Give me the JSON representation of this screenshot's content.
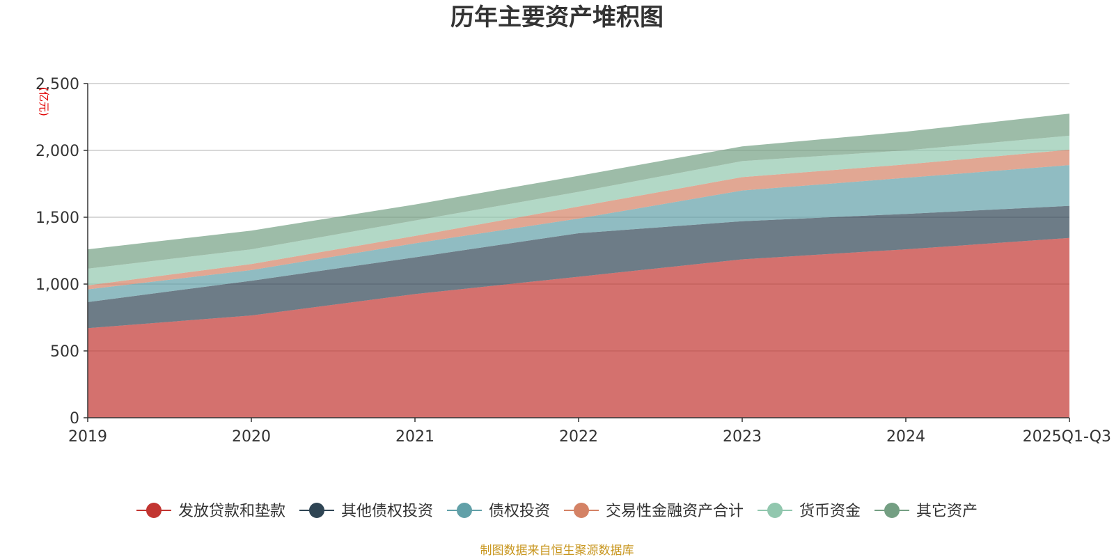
{
  "chart_data": {
    "type": "area",
    "stacked": true,
    "title": "历年主要资产堆积图",
    "unit_label": "(亿元)",
    "source": "制图数据来自恒生聚源数据库",
    "categories": [
      "2019",
      "2020",
      "2021",
      "2022",
      "2023",
      "2024",
      "2025Q1-Q3"
    ],
    "ylim": [
      0,
      2500
    ],
    "yticks": [
      0,
      500,
      1000,
      1500,
      2000,
      2500
    ],
    "ytick_labels": [
      "0",
      "500",
      "1,000",
      "1,500",
      "2,000",
      "2,500"
    ],
    "grid": true,
    "legend_position": "bottom",
    "series": [
      {
        "name": "发放贷款和垫款",
        "color": "#c23531",
        "values": [
          670,
          765,
          925,
          1055,
          1185,
          1260,
          1345
        ]
      },
      {
        "name": "其他债权投资",
        "color": "#2f4554",
        "values": [
          195,
          260,
          275,
          325,
          285,
          265,
          240
        ]
      },
      {
        "name": "债权投资",
        "color": "#61a0a8",
        "values": [
          95,
          80,
          105,
          110,
          230,
          270,
          305
        ]
      },
      {
        "name": "交易性金融资产合计",
        "color": "#d48265",
        "values": [
          30,
          45,
          55,
          90,
          100,
          100,
          115
        ]
      },
      {
        "name": "货币资金",
        "color": "#91c7ae",
        "values": [
          125,
          110,
          115,
          110,
          120,
          105,
          105
        ]
      },
      {
        "name": "其它资产",
        "color": "#749f83",
        "values": [
          145,
          140,
          120,
          120,
          110,
          140,
          165
        ]
      }
    ]
  }
}
